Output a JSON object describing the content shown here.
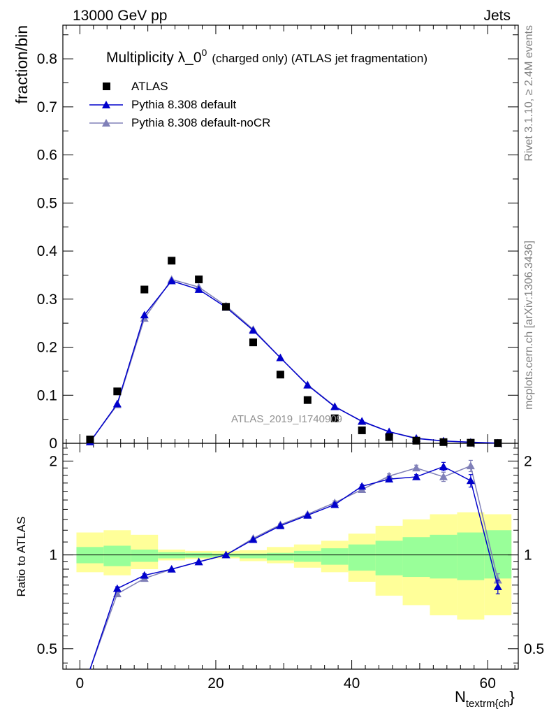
{
  "header": {
    "left": "13000 GeV pp",
    "right": "Jets"
  },
  "side_labels": {
    "rivet": "Rivet 3.1.10, ≥ 2.4M events",
    "mcplots": "mcplots.cern.ch [arXiv:1306.3436]"
  },
  "colors": {
    "atlas": "#000000",
    "default": "#0000cc",
    "nocr": "#8080b8",
    "band_inner": "#99ff99",
    "band_outer": "#ffff99"
  },
  "chart_data": [
    {
      "type": "scatter",
      "title_main": "Multiplicity λ_0",
      "title_sup": "0",
      "title_rest": "(charged only) (ATLAS jet fragmentation)",
      "ylabel": "fraction/bin",
      "watermark": "ATLAS_2019_I1740909",
      "xlim": [
        -2.5,
        64.5
      ],
      "ylim": [
        0,
        0.87
      ],
      "yticks": [
        0,
        0.1,
        0.2,
        0.3,
        0.4,
        0.5,
        0.6,
        0.7,
        0.8
      ],
      "ytick_labels": [
        "0",
        "0.1",
        "0.2",
        "0.3",
        "0.4",
        "0.5",
        "0.6",
        "0.7",
        "0.8"
      ],
      "legend_position": "top-left",
      "x": [
        1.5,
        5.5,
        9.5,
        13.5,
        17.5,
        21.5,
        25.5,
        29.5,
        33.5,
        37.5,
        41.5,
        45.5,
        49.5,
        53.5,
        57.5,
        61.5
      ],
      "series": [
        {
          "name": "ATLAS",
          "marker": "square",
          "values": [
            0.008,
            0.108,
            0.32,
            0.38,
            0.341,
            0.284,
            0.21,
            0.143,
            0.09,
            0.052,
            0.027,
            0.013,
            0.0055,
            0.0025,
            0.0012,
            0.0005
          ]
        },
        {
          "name": "Pythia 8.308 default",
          "marker": "triangle",
          "values": [
            0.003,
            0.082,
            0.267,
            0.338,
            0.32,
            0.283,
            0.235,
            0.178,
            0.121,
            0.076,
            0.046,
            0.024,
            0.01,
            0.0049,
            0.0022,
            0.0004
          ]
        },
        {
          "name": "Pythia 8.308 default-noCR",
          "marker": "triangle",
          "values": [
            0.003,
            0.08,
            0.26,
            0.341,
            0.325,
            0.286,
            0.237,
            0.178,
            0.122,
            0.077,
            0.045,
            0.024,
            0.011,
            0.0046,
            0.0024,
            0.0004
          ]
        }
      ]
    },
    {
      "type": "line",
      "ylabel": "Ratio to ATLAS",
      "xlabel_main": "N",
      "xlabel_sub": "textrm{ch",
      "xlabel_close": "}",
      "xlim": [
        -2.5,
        64.5
      ],
      "ylim": [
        0.43,
        2.28
      ],
      "log_y": true,
      "xticks": [
        0,
        20,
        40,
        60
      ],
      "xtick_labels": [
        "0",
        "20",
        "40",
        "60"
      ],
      "yticks": [
        0.5,
        1,
        2
      ],
      "ytick_labels": [
        "0.5",
        "1",
        "2"
      ],
      "x": [
        1.5,
        5.5,
        9.5,
        13.5,
        17.5,
        21.5,
        25.5,
        29.5,
        33.5,
        37.5,
        41.5,
        45.5,
        49.5,
        53.5,
        57.5,
        61.5
      ],
      "bin_edges": [
        -0.5,
        3.5,
        7.5,
        11.5,
        15.5,
        19.5,
        23.5,
        27.5,
        31.5,
        35.5,
        39.5,
        43.5,
        47.5,
        51.5,
        55.5,
        59.5,
        63.5
      ],
      "band_inner": [
        [
          0.94,
          1.06
        ],
        [
          0.92,
          1.07
        ],
        [
          0.95,
          1.04
        ],
        [
          0.975,
          1.02
        ],
        [
          0.98,
          1.015
        ],
        [
          0.985,
          1.01
        ],
        [
          0.975,
          1.01
        ],
        [
          0.96,
          1.015
        ],
        [
          0.95,
          1.03
        ],
        [
          0.93,
          1.05
        ],
        [
          0.89,
          1.08
        ],
        [
          0.86,
          1.11
        ],
        [
          0.85,
          1.14
        ],
        [
          0.84,
          1.16
        ],
        [
          0.83,
          1.18
        ],
        [
          0.84,
          1.2
        ]
      ],
      "band_outer": [
        [
          0.88,
          1.18
        ],
        [
          0.86,
          1.2
        ],
        [
          0.9,
          1.16
        ],
        [
          0.96,
          1.04
        ],
        [
          0.97,
          1.03
        ],
        [
          0.975,
          1.03
        ],
        [
          0.955,
          1.035
        ],
        [
          0.94,
          1.06
        ],
        [
          0.91,
          1.08
        ],
        [
          0.88,
          1.11
        ],
        [
          0.82,
          1.17
        ],
        [
          0.74,
          1.24
        ],
        [
          0.69,
          1.3
        ],
        [
          0.64,
          1.35
        ],
        [
          0.62,
          1.37
        ],
        [
          0.64,
          1.35
        ]
      ],
      "series": [
        {
          "name": "Pythia 8.308 default",
          "values": [
            0.36,
            0.78,
            0.86,
            0.9,
            0.95,
            1.0,
            1.12,
            1.24,
            1.34,
            1.45,
            1.66,
            1.75,
            1.78,
            1.92,
            1.73,
            0.79
          ],
          "errors": [
            0.02,
            0.01,
            0.01,
            0.005,
            0.005,
            0.005,
            0.005,
            0.01,
            0.01,
            0.02,
            0.02,
            0.03,
            0.03,
            0.06,
            0.08,
            0.04
          ]
        },
        {
          "name": "Pythia 8.308 default-noCR",
          "values": [
            0.32,
            0.75,
            0.84,
            0.9,
            0.95,
            1.0,
            1.13,
            1.25,
            1.35,
            1.47,
            1.62,
            1.79,
            1.9,
            1.78,
            1.93,
            0.83
          ],
          "errors": [
            0.02,
            0.01,
            0.01,
            0.005,
            0.005,
            0.005,
            0.005,
            0.01,
            0.01,
            0.02,
            0.02,
            0.03,
            0.04,
            0.06,
            0.08,
            0.04
          ]
        }
      ]
    }
  ]
}
